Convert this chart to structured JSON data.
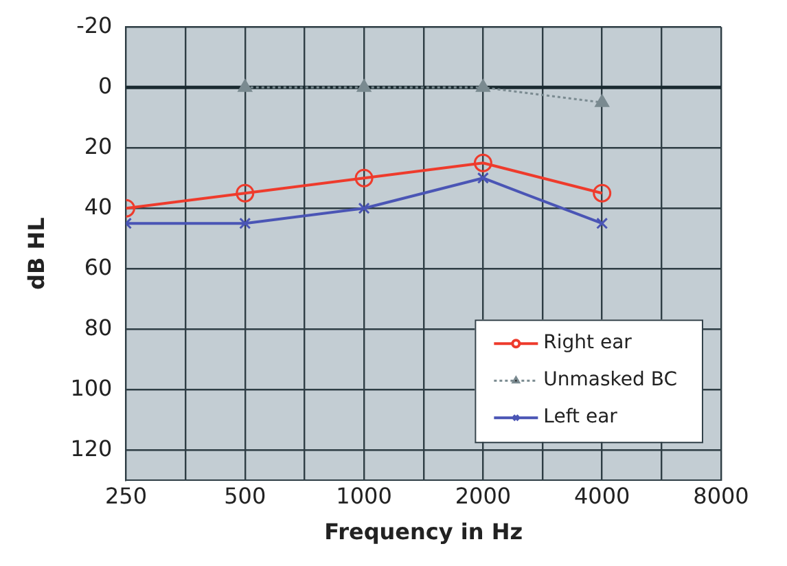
{
  "chart_data": {
    "type": "line",
    "xlabel": "Frequency in Hz",
    "ylabel": "dB HL",
    "log": "x",
    "x": [
      250,
      500,
      1000,
      2000,
      4000
    ],
    "xlim": [
      250,
      8000
    ],
    "xticks": [
      250,
      {
        "value": 354,
        "label": null
      },
      500,
      {
        "value": 707,
        "label": null
      },
      1000,
      {
        "value": 1414,
        "label": null
      },
      2000,
      {
        "value": 2828,
        "label": null
      },
      4000,
      {
        "value": 5657,
        "label": null
      },
      8000
    ],
    "ylim": [
      130,
      -20
    ],
    "yticks": [
      -20,
      0,
      20,
      40,
      60,
      80,
      100,
      120
    ],
    "grid": true,
    "legend": "bottom right",
    "ref_lines": [
      {
        "axis": "y",
        "value": 0,
        "color": "#1a2a30"
      }
    ],
    "series": [
      {
        "name": "Right ear",
        "color": "#ee3b2c",
        "values": [
          40,
          35,
          30,
          25,
          35
        ],
        "marker": "circle",
        "line_style": "solid"
      },
      {
        "name": "Unmasked BC",
        "color": "#7a8a90",
        "x": [
          500,
          1000,
          2000,
          4000
        ],
        "values": [
          0,
          0,
          0,
          5
        ],
        "marker": "triangle",
        "line_style": "dotted"
      },
      {
        "name": "Left ear",
        "color": "#4a55b5",
        "values": [
          45,
          45,
          40,
          30,
          45
        ],
        "marker": "cross",
        "line_style": "solid"
      }
    ]
  }
}
